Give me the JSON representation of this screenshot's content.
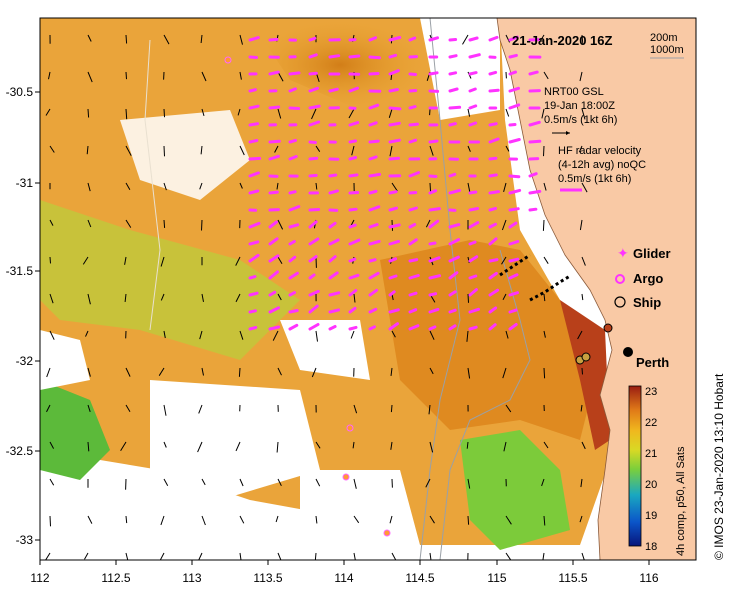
{
  "map": {
    "date_label": "21-Jan-2020 16Z",
    "isobath_labels": [
      "200m",
      "1000m"
    ],
    "nrt_title": "NRT00 GSL",
    "nrt_time": "19-Jan 18:00Z",
    "nrt_scale": "0.5m/s (1kt 6h)",
    "hf_title": "HF radar velocity",
    "hf_avg": "(4-12h avg) noQC",
    "hf_scale": "0.5m/s (1kt 6h)",
    "legend_glider": "Glider",
    "legend_argo": "Argo",
    "legend_ship": "Ship",
    "city": "Perth",
    "colorbar_label": "4h comp, p50, All Sats",
    "colorbar_ticks": [
      "23",
      "22",
      "21",
      "20",
      "19",
      "18"
    ],
    "credit": "© IMOS 23-Jan-2020 13:10 Hobart",
    "x_ticks": [
      "112",
      "112.5",
      "113",
      "113.5",
      "114",
      "114.5",
      "115",
      "115.5",
      "116"
    ],
    "y_ticks": [
      "-30.5",
      "-31",
      "-31.5",
      "-32",
      "-32.5",
      "-33"
    ],
    "colors": {
      "land": "#f9c9a5",
      "sst_warm": "#e08a1c",
      "sst_hot": "#b8401a",
      "sst_cool": "#7fc93a",
      "hf_arrow": "#ff33ff",
      "glider": "#ff33ff",
      "argo": "#ff66ff"
    }
  }
}
